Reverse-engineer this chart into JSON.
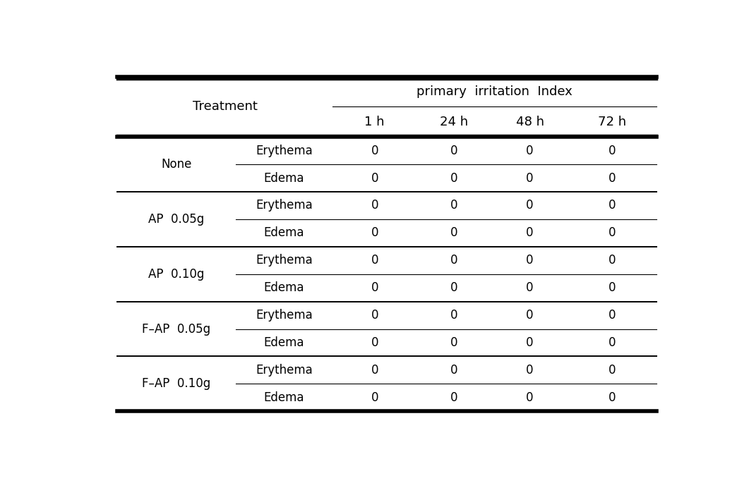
{
  "title": "primary  irritation  Index",
  "col1_header": "Treatment",
  "time_headers": [
    "1 h",
    "24 h",
    "48 h",
    "72 h"
  ],
  "groups": [
    {
      "group_label": "None",
      "rows": [
        {
          "label": "Erythema",
          "values": [
            0,
            0,
            0,
            0
          ]
        },
        {
          "label": "Edema",
          "values": [
            0,
            0,
            0,
            0
          ]
        }
      ]
    },
    {
      "group_label": "AP  0.05g",
      "rows": [
        {
          "label": "Erythema",
          "values": [
            0,
            0,
            0,
            0
          ]
        },
        {
          "label": "Edema",
          "values": [
            0,
            0,
            0,
            0
          ]
        }
      ]
    },
    {
      "group_label": "AP  0.10g",
      "rows": [
        {
          "label": "Erythema",
          "values": [
            0,
            0,
            0,
            0
          ]
        },
        {
          "label": "Edema",
          "values": [
            0,
            0,
            0,
            0
          ]
        }
      ]
    },
    {
      "group_label": "F–AP  0.05g",
      "rows": [
        {
          "label": "Erythema",
          "values": [
            0,
            0,
            0,
            0
          ]
        },
        {
          "label": "Edema",
          "values": [
            0,
            0,
            0,
            0
          ]
        }
      ]
    },
    {
      "group_label": "F–AP  0.10g",
      "rows": [
        {
          "label": "Erythema",
          "values": [
            0,
            0,
            0,
            0
          ]
        },
        {
          "label": "Edema",
          "values": [
            0,
            0,
            0,
            0
          ]
        }
      ]
    }
  ],
  "bg_color": "#ffffff",
  "text_color": "#000000",
  "header_fontsize": 13,
  "group_fontsize": 12,
  "cell_fontsize": 12,
  "lw_thick": 2.5,
  "lw_thin": 0.8,
  "lw_group": 1.4,
  "ml": 0.04,
  "mr": 0.97,
  "mt": 0.95,
  "mb": 0.05,
  "header_units": 2.2,
  "data_units": 10.0
}
